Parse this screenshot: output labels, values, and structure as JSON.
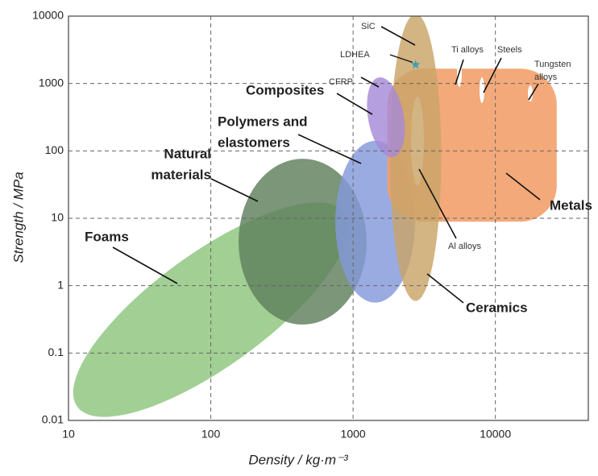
{
  "chart_data": {
    "type": "region",
    "x_label": "Density / kg·m⁻³",
    "y_label": "Strength / MPa",
    "xscale": "log",
    "yscale": "log",
    "xlim": [
      10,
      45000
    ],
    "ylim": [
      0.01,
      10000
    ],
    "xticks": [
      10,
      100,
      1000,
      10000
    ],
    "yticks": [
      0.01,
      0.1,
      1,
      10,
      100,
      1000,
      10000
    ],
    "grid": true,
    "regions": [
      {
        "shape": "ellipse",
        "color": "#8cc47c",
        "center": [
          100,
          0.44
        ],
        "size": [
          1.16,
          0.84
        ],
        "angle": -36
      },
      {
        "shape": "ellipse",
        "color": "#5e7f5a",
        "center": [
          442,
          4.5
        ],
        "size": [
          0.45,
          1.23
        ],
        "angle": 0
      },
      {
        "shape": "ellipse",
        "color": "#8498db",
        "center": [
          1430,
          8.9
        ],
        "size": [
          0.28,
          1.2
        ],
        "angle": 0
      },
      {
        "shape": "rect",
        "color": "#f2a06c",
        "x": [
          1740,
          27000
        ],
        "y": [
          8.9,
          1660
        ]
      },
      {
        "shape": "ellipse",
        "color": "#c9a468",
        "center": [
          2750,
          80
        ],
        "size": [
          0.18,
          2.13
        ],
        "angle": 0
      },
      {
        "shape": "ellipse",
        "color": "#a68ad8",
        "center": [
          1700,
          316
        ],
        "size": [
          0.125,
          0.6
        ],
        "angle": -10
      }
    ],
    "points": [
      {
        "name": "LDHEA",
        "x": 2750,
        "y": 1900,
        "color": "#3aa0b4"
      }
    ],
    "annotations": [
      {
        "text": [
          "Foams"
        ]
      },
      {
        "text": [
          "Natural",
          "materials"
        ]
      },
      {
        "text": [
          "Polymers and",
          "elastomers"
        ]
      },
      {
        "text": [
          "Composites"
        ]
      },
      {
        "text": [
          "Metals"
        ]
      },
      {
        "text": [
          "Ceramics"
        ]
      },
      {
        "text": [
          "SiC"
        ]
      },
      {
        "text": [
          "CFRP"
        ]
      },
      {
        "text": [
          "Ti alloys"
        ]
      },
      {
        "text": [
          "Steels"
        ]
      },
      {
        "text": [
          "Tungsten",
          "alloys"
        ]
      },
      {
        "text": [
          "Al alloys"
        ]
      }
    ]
  }
}
